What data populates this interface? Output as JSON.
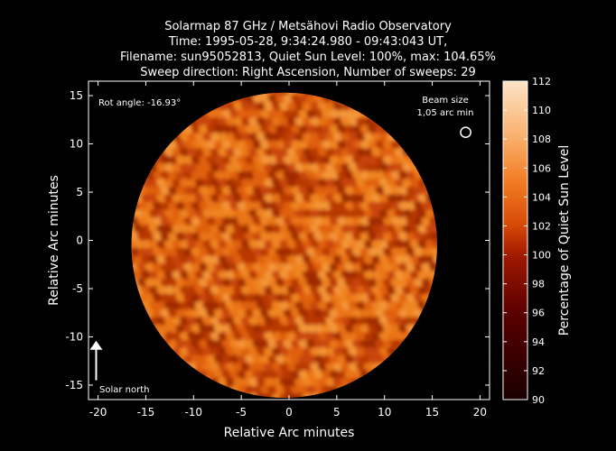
{
  "chart_data": {
    "type": "heatmap",
    "title_lines": [
      "Solarmap 87 GHz / Metsähovi Radio Observatory",
      "Time: 1995-05-28,  9:34:24.980 - 09:43:043 UT,",
      "Filename: sun95052813, Quiet Sun Level: 100%, max: 104.65%",
      "Sweep direction: Right Ascension, Number of sweeps: 29"
    ],
    "xlabel": "Relative Arc minutes",
    "ylabel": "Relative Arc minutes",
    "xlim": [
      -21,
      21
    ],
    "ylim": [
      -16.5,
      16.5
    ],
    "xticks": [
      -20,
      -15,
      -10,
      -5,
      0,
      5,
      10,
      15,
      20
    ],
    "yticks": [
      -15,
      -10,
      -5,
      0,
      5,
      10,
      15
    ],
    "disk": {
      "center": [
        -0.5,
        -0.5
      ],
      "radius": 16.0
    },
    "colorbar": {
      "label": "Percentage of Quiet Sun Level",
      "range": [
        90,
        112
      ],
      "ticks": [
        90,
        92,
        94,
        96,
        98,
        100,
        102,
        104,
        106,
        108,
        110,
        112
      ]
    },
    "annotations": {
      "rot_angle": "Rot angle: -16.93°",
      "beam_size_line1": "Beam size",
      "beam_size_line2": "1,05 arc min",
      "solar_north": "Solar north"
    },
    "beam": {
      "center": [
        18.5,
        11.2
      ],
      "radius": 0.53
    },
    "north_arrow": {
      "from": [
        -20.2,
        -14.5
      ],
      "to": [
        -20.2,
        -10.4
      ]
    }
  },
  "colors": {
    "background": "#000000",
    "disk_base": "#d9500a"
  }
}
